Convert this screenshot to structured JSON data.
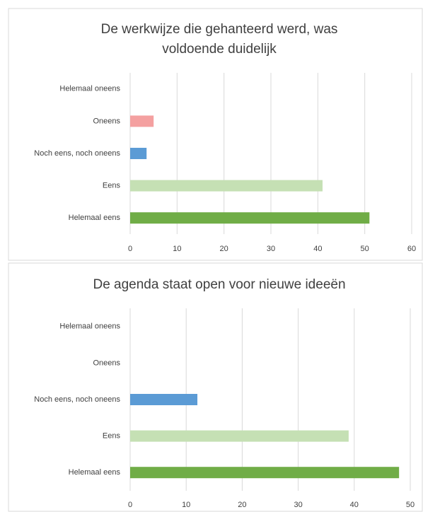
{
  "chart_data": [
    {
      "type": "bar",
      "orientation": "horizontal",
      "title": "De werkwijze die gehanteerd werd, was voldoende duidelijk",
      "categories": [
        "Helemaal oneens",
        "Oneens",
        "Noch eens, noch oneens",
        "Eens",
        "Helemaal eens"
      ],
      "values": [
        0,
        5,
        3.5,
        41,
        51
      ],
      "colors": [
        "#a5a5a5",
        "#f4a0a0",
        "#5b9bd5",
        "#c5e0b4",
        "#70ad47"
      ],
      "xlim": [
        0,
        60
      ],
      "xticks": [
        0,
        10,
        20,
        30,
        40,
        50,
        60
      ],
      "grid": true
    },
    {
      "type": "bar",
      "orientation": "horizontal",
      "title": "De agenda staat open voor nieuwe ideeën",
      "categories": [
        "Helemaal oneens",
        "Oneens",
        "Noch eens, noch oneens",
        "Eens",
        "Helemaal eens"
      ],
      "values": [
        0,
        0,
        12,
        39,
        48
      ],
      "colors": [
        "#a5a5a5",
        "#f4a0a0",
        "#5b9bd5",
        "#c5e0b4",
        "#70ad47"
      ],
      "xlim": [
        0,
        50
      ],
      "xticks": [
        0,
        10,
        20,
        30,
        40,
        50
      ],
      "grid": true
    }
  ]
}
